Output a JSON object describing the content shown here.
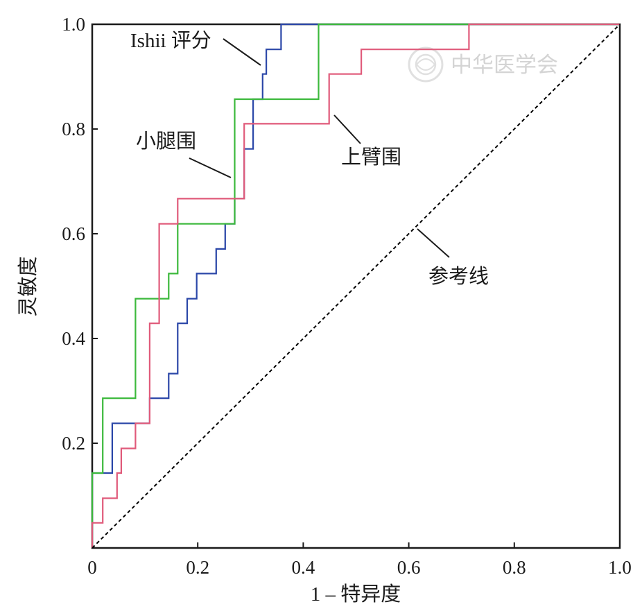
{
  "chart_data": {
    "type": "line",
    "subtype": "roc-step",
    "xlabel": "1 – 特异度",
    "ylabel": "灵敏度",
    "xlim": [
      0,
      1
    ],
    "ylim": [
      0,
      1
    ],
    "x_ticks": [
      "0",
      "0.2",
      "0.4",
      "0.6",
      "0.8",
      "1.0"
    ],
    "y_ticks": [
      "0.2",
      "0.4",
      "0.6",
      "0.8",
      "1.0"
    ],
    "x_tick_values": [
      0,
      0.2,
      0.4,
      0.6,
      0.8,
      1.0
    ],
    "y_tick_values": [
      0.2,
      0.4,
      0.6,
      0.8,
      1.0
    ],
    "grid": false,
    "legend": "none (direct annotations)",
    "series": [
      {
        "name": "Ishii 评分",
        "color": "#2b47a8",
        "points": [
          [
            0,
            0
          ],
          [
            0,
            0.143
          ],
          [
            0.038,
            0.143
          ],
          [
            0.038,
            0.238
          ],
          [
            0.109,
            0.238
          ],
          [
            0.109,
            0.286
          ],
          [
            0.145,
            0.286
          ],
          [
            0.145,
            0.333
          ],
          [
            0.162,
            0.333
          ],
          [
            0.162,
            0.429
          ],
          [
            0.18,
            0.429
          ],
          [
            0.18,
            0.476
          ],
          [
            0.198,
            0.476
          ],
          [
            0.198,
            0.524
          ],
          [
            0.235,
            0.524
          ],
          [
            0.235,
            0.571
          ],
          [
            0.252,
            0.571
          ],
          [
            0.252,
            0.619
          ],
          [
            0.27,
            0.619
          ],
          [
            0.27,
            0.667
          ],
          [
            0.288,
            0.667
          ],
          [
            0.288,
            0.762
          ],
          [
            0.305,
            0.762
          ],
          [
            0.305,
            0.857
          ],
          [
            0.323,
            0.857
          ],
          [
            0.323,
            0.905
          ],
          [
            0.33,
            0.905
          ],
          [
            0.33,
            0.952
          ],
          [
            0.358,
            0.952
          ],
          [
            0.358,
            1.0
          ],
          [
            1.0,
            1.0
          ]
        ]
      },
      {
        "name": "小腿围",
        "color": "#3cb93c",
        "points": [
          [
            0,
            0
          ],
          [
            0,
            0.143
          ],
          [
            0.02,
            0.143
          ],
          [
            0.02,
            0.286
          ],
          [
            0.082,
            0.286
          ],
          [
            0.082,
            0.476
          ],
          [
            0.145,
            0.476
          ],
          [
            0.145,
            0.524
          ],
          [
            0.162,
            0.524
          ],
          [
            0.162,
            0.619
          ],
          [
            0.27,
            0.619
          ],
          [
            0.27,
            0.857
          ],
          [
            0.429,
            0.857
          ],
          [
            0.429,
            1.0
          ],
          [
            1.0,
            1.0
          ]
        ]
      },
      {
        "name": "上臂围",
        "color": "#e05a7a",
        "points": [
          [
            0,
            0
          ],
          [
            0,
            0.048
          ],
          [
            0.02,
            0.048
          ],
          [
            0.02,
            0.095
          ],
          [
            0.047,
            0.095
          ],
          [
            0.047,
            0.143
          ],
          [
            0.055,
            0.143
          ],
          [
            0.055,
            0.19
          ],
          [
            0.082,
            0.19
          ],
          [
            0.082,
            0.238
          ],
          [
            0.109,
            0.238
          ],
          [
            0.109,
            0.429
          ],
          [
            0.127,
            0.429
          ],
          [
            0.127,
            0.619
          ],
          [
            0.162,
            0.619
          ],
          [
            0.162,
            0.667
          ],
          [
            0.288,
            0.667
          ],
          [
            0.288,
            0.81
          ],
          [
            0.449,
            0.81
          ],
          [
            0.449,
            0.905
          ],
          [
            0.51,
            0.905
          ],
          [
            0.51,
            0.952
          ],
          [
            0.714,
            0.952
          ],
          [
            0.714,
            1.0
          ],
          [
            1.0,
            1.0
          ]
        ]
      },
      {
        "name": "参考线",
        "color": "#000000",
        "dashed": true,
        "points": [
          [
            0,
            0
          ],
          [
            1,
            1
          ]
        ]
      }
    ],
    "annotations": [
      {
        "text": "Ishii 评分",
        "target": [
          0.323,
          0.905
        ]
      },
      {
        "text": "小腿围",
        "target": [
          0.27,
          0.71
        ]
      },
      {
        "text": "上臂围",
        "target": [
          0.449,
          0.83
        ]
      },
      {
        "text": "参考线",
        "target": [
          0.61,
          0.61
        ]
      }
    ],
    "watermark": "中华医学会"
  }
}
